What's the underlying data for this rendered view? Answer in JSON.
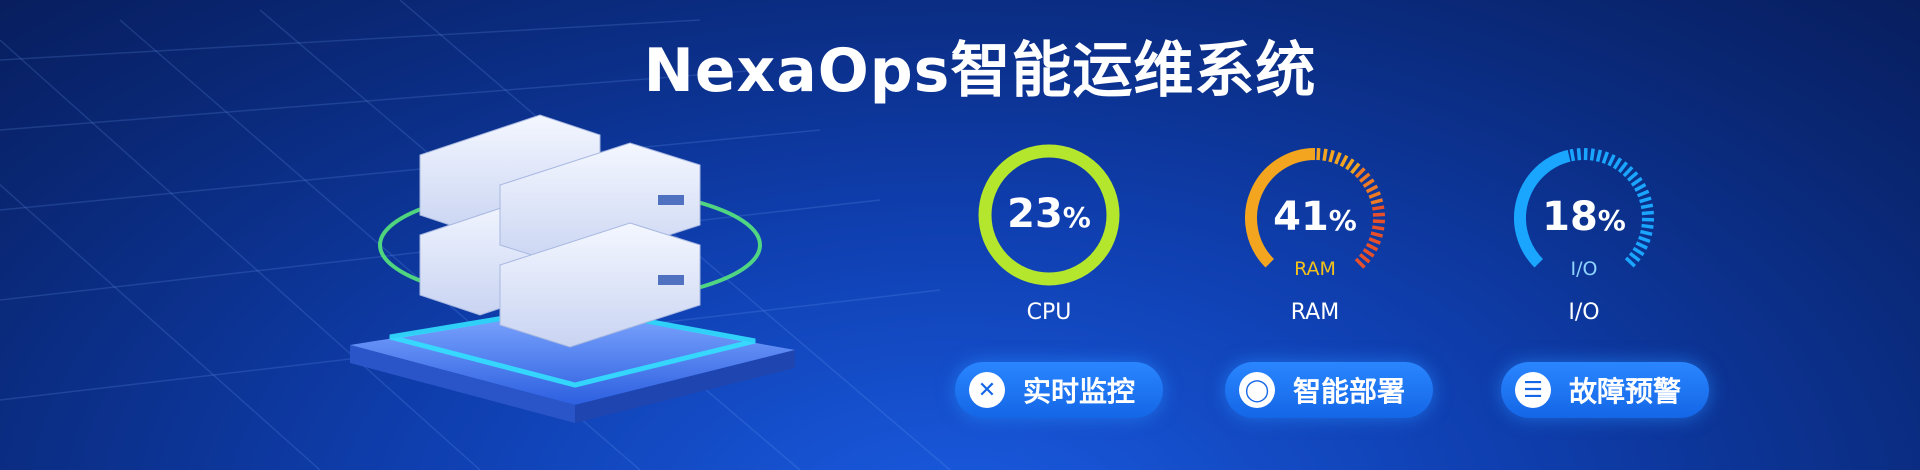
{
  "title": "NexaOps智能运维系统",
  "colors": {
    "cpu": "#b5e62e",
    "ram_start": "#f5c21a",
    "ram_end": "#e8502a",
    "io": "#1aa6ff",
    "button": "#1f78f2"
  },
  "gauges": [
    {
      "id": "cpu",
      "value": "23",
      "unit": "%",
      "percent": 23,
      "label": "CPU",
      "inner_label": ""
    },
    {
      "id": "ram",
      "value": "41",
      "unit": "%",
      "percent": 41,
      "label": "RAM",
      "inner_label": "RAM"
    },
    {
      "id": "io",
      "value": "18",
      "unit": "%",
      "percent": 18,
      "label": "I/O",
      "inner_label": "I/O"
    }
  ],
  "buttons": [
    {
      "label": "实时监控",
      "icon": "close-x-icon",
      "glyph": "✕"
    },
    {
      "label": "智能部署",
      "icon": "ring-icon",
      "glyph": "◯"
    },
    {
      "label": "故障预警",
      "icon": "menu-lines-icon",
      "glyph": "☰"
    }
  ]
}
